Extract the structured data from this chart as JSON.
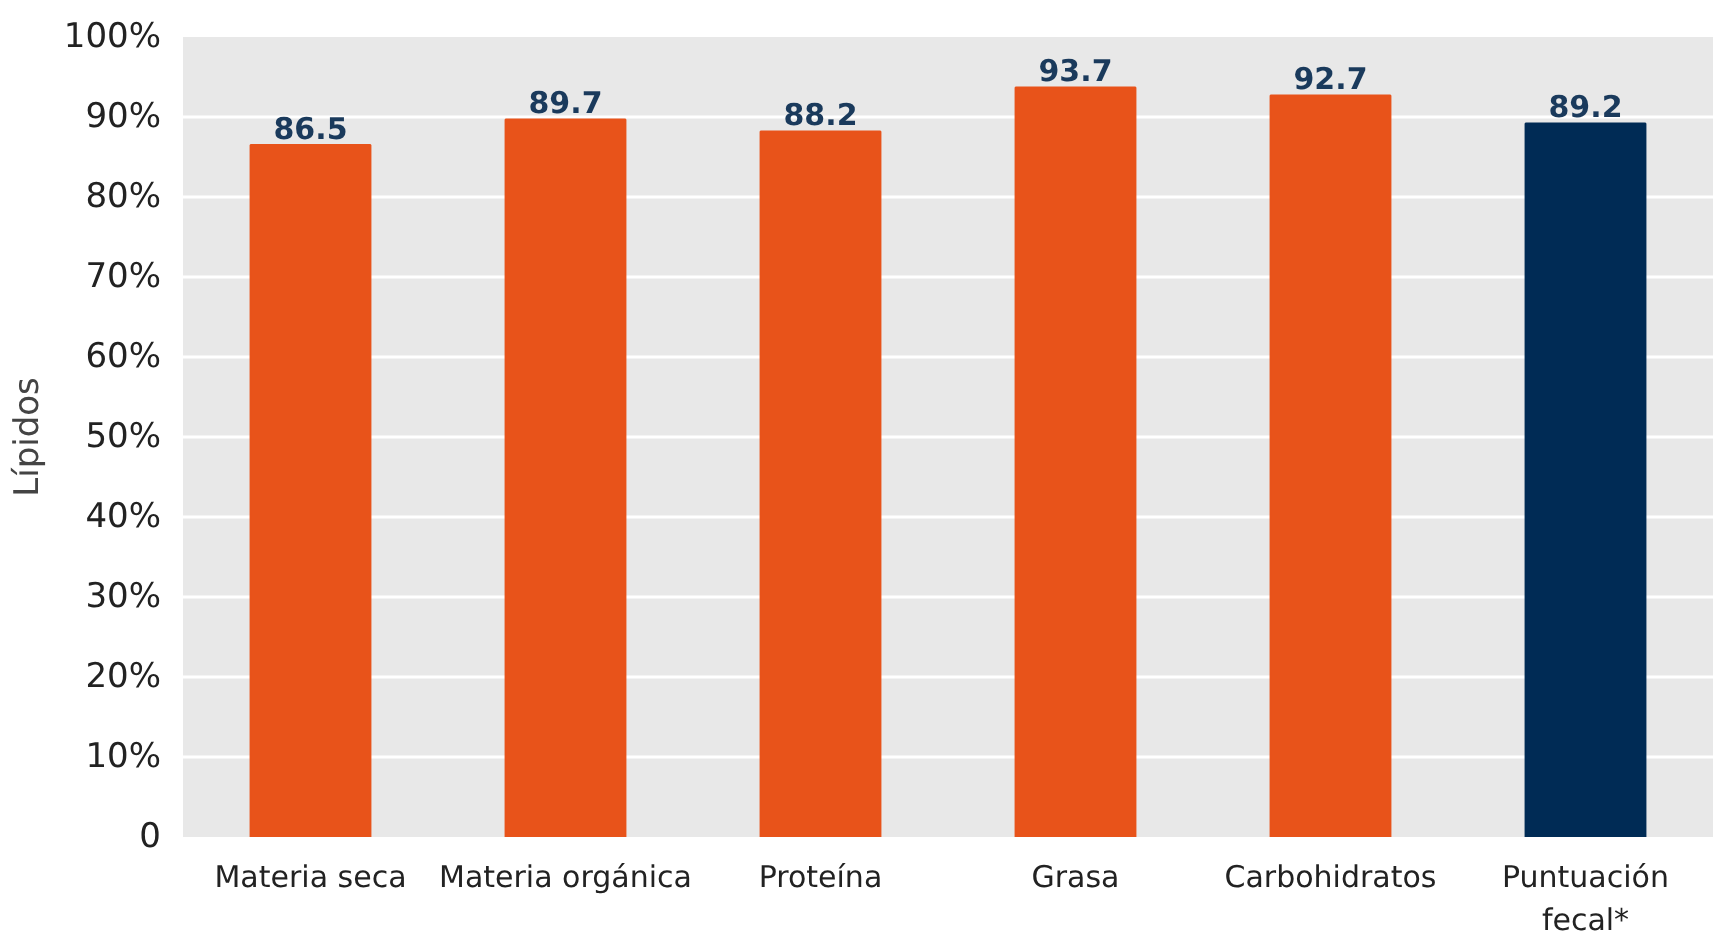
{
  "chart_data": {
    "type": "bar",
    "ylabel": "Lípidos",
    "categories": [
      "Materia seca",
      "Materia orgánica",
      "Proteína",
      "Grasa",
      "Carbohidratos",
      "Puntuación\nfecal*"
    ],
    "values": [
      86.5,
      89.7,
      88.2,
      93.7,
      92.7,
      89.2
    ],
    "colors": [
      "#e8531a",
      "#e8531a",
      "#e8531a",
      "#e8531a",
      "#e8531a",
      "#002b55"
    ],
    "ylim": [
      0,
      100
    ],
    "yticks": [
      {
        "value": 0,
        "label": "0"
      },
      {
        "value": 10,
        "label": "10%"
      },
      {
        "value": 20,
        "label": "20%"
      },
      {
        "value": 30,
        "label": "30%"
      },
      {
        "value": 40,
        "label": "40%"
      },
      {
        "value": 50,
        "label": "50%"
      },
      {
        "value": 60,
        "label": "60%"
      },
      {
        "value": 70,
        "label": "70%"
      },
      {
        "value": 80,
        "label": "80%"
      },
      {
        "value": 90,
        "label": "90%"
      },
      {
        "value": 100,
        "label": "100%"
      }
    ],
    "grid": "y",
    "data_labels": true
  }
}
